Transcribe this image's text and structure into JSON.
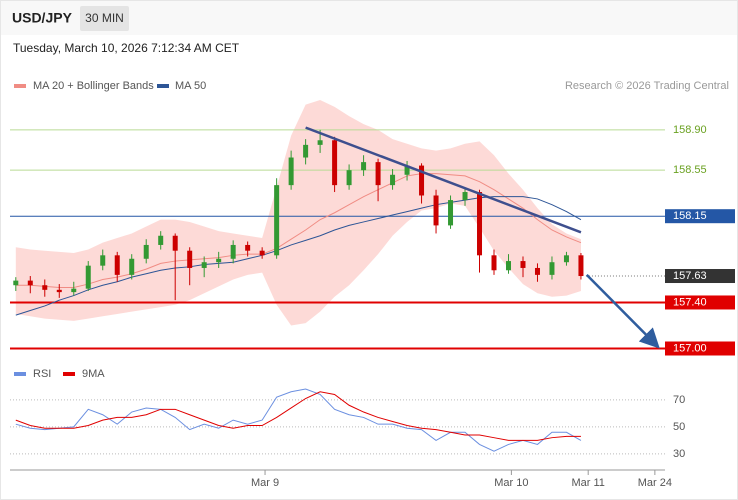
{
  "header": {
    "symbol": "USD/JPY",
    "interval": "30 MIN",
    "timestamp": "Tuesday, March 10, 2026 7:12:34 AM CET",
    "attribution": "Research © 2026 Trading Central"
  },
  "chart_data": [
    {
      "type": "candlestick",
      "xlim": [
        -0.4,
        44.8
      ],
      "ylim": [
        156.9,
        159.16
      ],
      "up_color": "#339933",
      "down_color": "#cc0000",
      "candles": [
        [
          157.55,
          157.62,
          157.5,
          157.59
        ],
        [
          157.59,
          157.63,
          157.48,
          157.55
        ],
        [
          157.55,
          157.6,
          157.45,
          157.51
        ],
        [
          157.51,
          157.56,
          157.44,
          157.49
        ],
        [
          157.49,
          157.58,
          157.46,
          157.52
        ],
        [
          157.52,
          157.76,
          157.5,
          157.72
        ],
        [
          157.72,
          157.86,
          157.68,
          157.81
        ],
        [
          157.81,
          157.84,
          157.58,
          157.64
        ],
        [
          157.64,
          157.82,
          157.6,
          157.78
        ],
        [
          157.78,
          157.95,
          157.74,
          157.9
        ],
        [
          157.9,
          158.02,
          157.86,
          157.98
        ],
        [
          157.98,
          158.0,
          157.42,
          157.85
        ],
        [
          157.85,
          157.88,
          157.55,
          157.7
        ],
        [
          157.7,
          157.8,
          157.62,
          157.75
        ],
        [
          157.75,
          157.84,
          157.7,
          157.78
        ],
        [
          157.78,
          157.94,
          157.74,
          157.9
        ],
        [
          157.9,
          157.93,
          157.8,
          157.85
        ],
        [
          157.85,
          157.88,
          157.78,
          157.81
        ],
        [
          157.81,
          158.48,
          157.78,
          158.42
        ],
        [
          158.42,
          158.72,
          158.38,
          158.66
        ],
        [
          158.66,
          158.82,
          158.6,
          158.77
        ],
        [
          158.77,
          158.9,
          158.7,
          158.81
        ],
        [
          158.81,
          158.84,
          158.36,
          158.42
        ],
        [
          158.42,
          158.6,
          158.38,
          158.55
        ],
        [
          158.55,
          158.68,
          158.5,
          158.62
        ],
        [
          158.62,
          158.65,
          158.28,
          158.42
        ],
        [
          158.42,
          158.56,
          158.38,
          158.51
        ],
        [
          158.51,
          158.63,
          158.46,
          158.59
        ],
        [
          158.59,
          158.61,
          158.26,
          158.33
        ],
        [
          158.33,
          158.38,
          158.0,
          158.07
        ],
        [
          158.07,
          158.33,
          158.04,
          158.29
        ],
        [
          158.29,
          158.4,
          158.24,
          158.36
        ],
        [
          158.36,
          158.38,
          157.66,
          157.81
        ],
        [
          157.81,
          157.86,
          157.64,
          157.68
        ],
        [
          157.68,
          157.82,
          157.65,
          157.76
        ],
        [
          157.76,
          157.8,
          157.62,
          157.7
        ],
        [
          157.7,
          157.74,
          157.58,
          157.64
        ],
        [
          157.64,
          157.8,
          157.6,
          157.75
        ],
        [
          157.75,
          157.84,
          157.72,
          157.81
        ],
        [
          157.81,
          157.83,
          157.6,
          157.63
        ]
      ],
      "series": [
        {
          "name": "MA 20 + Bollinger Bands",
          "color": "#f08c84",
          "band_color": "#fdd3d0",
          "values": [
            157.55,
            157.55,
            157.54,
            157.53,
            157.53,
            157.56,
            157.6,
            157.62,
            157.65,
            157.69,
            157.74,
            157.76,
            157.77,
            157.78,
            157.79,
            157.81,
            157.82,
            157.82,
            157.87,
            157.95,
            158.03,
            158.12,
            158.18,
            158.25,
            158.32,
            158.38,
            158.44,
            158.5,
            158.52,
            158.52,
            158.51,
            158.5,
            158.45,
            158.38,
            158.3,
            158.22,
            158.12,
            158.03,
            157.97,
            157.92
          ],
          "upper": [
            157.88,
            157.86,
            157.85,
            157.84,
            157.83,
            157.86,
            157.92,
            157.96,
            158.0,
            158.06,
            158.12,
            158.12,
            158.1,
            158.06,
            158.02,
            158.0,
            157.98,
            157.96,
            158.4,
            158.85,
            159.12,
            159.16,
            159.1,
            159.02,
            158.95,
            158.9,
            158.82,
            158.78,
            158.74,
            158.72,
            158.74,
            158.78,
            158.8,
            158.68,
            158.52,
            158.38,
            158.22,
            158.08,
            158.0,
            157.95
          ],
          "lower": [
            157.3,
            157.28,
            157.26,
            157.25,
            157.24,
            157.26,
            157.28,
            157.3,
            157.32,
            157.34,
            157.36,
            157.38,
            157.42,
            157.48,
            157.54,
            157.6,
            157.64,
            157.66,
            157.38,
            157.2,
            157.22,
            157.32,
            157.45,
            157.55,
            157.68,
            157.82,
            157.98,
            158.1,
            158.2,
            158.22,
            158.26,
            158.24,
            158.05,
            157.85,
            157.7,
            157.56,
            157.48,
            157.45,
            157.46,
            157.5
          ]
        },
        {
          "name": "MA 50",
          "color": "#2d5596",
          "values": [
            157.29,
            157.33,
            157.37,
            157.42,
            157.46,
            157.51,
            157.55,
            157.58,
            157.62,
            157.65,
            157.68,
            157.7,
            157.71,
            157.73,
            157.74,
            157.75,
            157.78,
            157.81,
            157.85,
            157.9,
            157.94,
            157.98,
            158.03,
            158.07,
            158.1,
            158.13,
            158.16,
            158.19,
            158.22,
            158.25,
            158.27,
            158.29,
            158.31,
            158.32,
            158.32,
            158.32,
            158.3,
            158.25,
            158.19,
            158.12
          ]
        }
      ],
      "levels": [
        {
          "value": 158.9,
          "label": "158.90",
          "color": "#6aa121",
          "line_color": "#b9db94",
          "filled": false,
          "style": "solid"
        },
        {
          "value": 158.55,
          "color": "#6aa121",
          "line_color": "#b9db94",
          "filled": false,
          "style": "solid"
        },
        {
          "value": 158.15,
          "color": "#2457a6",
          "line_color": "#2457a6",
          "filled": true,
          "style": "solid"
        },
        {
          "value": 157.63,
          "color": "#333333",
          "line_color": "#777777",
          "filled": true,
          "style": "dotted"
        },
        {
          "value": 157.4,
          "label": "157.40",
          "color": "#e00000",
          "line_color": "#e00000",
          "filled": true,
          "style": "solid"
        },
        {
          "value": 157,
          "label": "157.00",
          "color": "#e00000",
          "line_color": "#e00000",
          "filled": true,
          "style": "solid"
        }
      ],
      "trend_lines": [
        {
          "color": "#3e4f8e",
          "arrow": false,
          "points": [
            [
              20,
              158.92
            ],
            [
              39,
              158.01
            ]
          ]
        },
        {
          "color": "#2f5d9e",
          "arrow": true,
          "points": [
            [
              39.4,
              157.64
            ],
            [
              44.2,
              157.03
            ]
          ]
        }
      ]
    },
    {
      "type": "line",
      "xlim": [
        -0.4,
        44.8
      ],
      "ylim": [
        24,
        81
      ],
      "yticks": [
        30,
        50,
        70
      ],
      "grid": true,
      "xticks": [
        {
          "value": 17.2,
          "label": "Mar 9"
        },
        {
          "value": 34.2,
          "label": "Mar 10"
        },
        {
          "value": 39.5,
          "label": "Mar 11"
        },
        {
          "value": 44.1,
          "label": "Mar 24"
        }
      ],
      "series": [
        {
          "name": "RSI",
          "color": "#6b8fe0",
          "values": [
            52,
            49,
            48,
            49,
            50,
            63,
            59,
            52,
            61,
            64,
            63,
            57,
            48,
            52,
            49,
            55,
            52,
            55,
            72,
            76,
            78,
            74,
            63,
            59,
            57,
            52,
            52,
            49,
            48,
            40,
            46,
            46,
            37,
            32,
            37,
            40,
            37,
            46,
            46,
            40
          ]
        },
        {
          "name": "9MA",
          "color": "#e00000",
          "values": [
            55,
            51,
            49,
            49,
            49,
            51,
            55,
            57,
            57,
            59,
            63,
            63,
            59,
            55,
            51,
            49,
            51,
            51,
            57,
            64,
            71,
            76,
            74,
            66,
            61,
            57,
            54,
            51,
            49,
            48,
            46,
            44,
            44,
            42,
            40,
            40,
            40,
            42,
            43,
            43
          ]
        }
      ]
    }
  ]
}
